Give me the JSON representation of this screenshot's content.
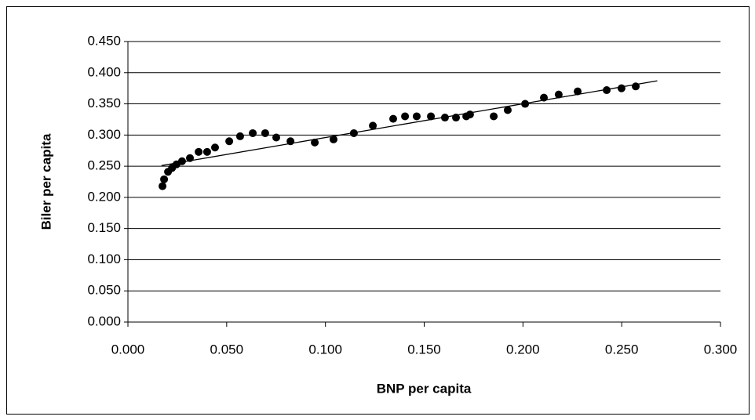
{
  "chart_data": {
    "type": "scatter",
    "xlabel": "BNP per capita",
    "ylabel": "Biler per capita",
    "xlim": [
      0,
      0.3
    ],
    "ylim": [
      0,
      0.45
    ],
    "xticks": [
      {
        "value": 0,
        "label": "0.000"
      },
      {
        "value": 0.05,
        "label": "0.050"
      },
      {
        "value": 0.1,
        "label": "0.100"
      },
      {
        "value": 0.15,
        "label": "0.150"
      },
      {
        "value": 0.2,
        "label": "0.200"
      },
      {
        "value": 0.25,
        "label": "0.250"
      },
      {
        "value": 0.3,
        "label": "0.300"
      }
    ],
    "yticks": [
      {
        "value": 0,
        "label": "0.000"
      },
      {
        "value": 0.05,
        "label": "0.050"
      },
      {
        "value": 0.1,
        "label": "0.100"
      },
      {
        "value": 0.15,
        "label": "0.150"
      },
      {
        "value": 0.2,
        "label": "0.200"
      },
      {
        "value": 0.25,
        "label": "0.250"
      },
      {
        "value": 0.3,
        "label": "0.300"
      },
      {
        "value": 0.35,
        "label": "0.350"
      },
      {
        "value": 0.4,
        "label": "0.400"
      },
      {
        "value": 0.45,
        "label": "0.450"
      }
    ],
    "grid": true,
    "color": "#000000",
    "x": [
      0.0175,
      0.0183,
      0.0203,
      0.0223,
      0.0246,
      0.0274,
      0.0314,
      0.0358,
      0.0401,
      0.0441,
      0.0513,
      0.0568,
      0.0632,
      0.0695,
      0.0751,
      0.0823,
      0.0946,
      0.1041,
      0.1144,
      0.124,
      0.1343,
      0.1403,
      0.1462,
      0.1534,
      0.1605,
      0.1661,
      0.1713,
      0.1732,
      0.1852,
      0.1923,
      0.2011,
      0.2106,
      0.2181,
      0.2277,
      0.2424,
      0.2499,
      0.2571
    ],
    "values": [
      0.218,
      0.229,
      0.241,
      0.247,
      0.253,
      0.258,
      0.263,
      0.273,
      0.273,
      0.28,
      0.29,
      0.298,
      0.303,
      0.303,
      0.296,
      0.29,
      0.288,
      0.293,
      0.303,
      0.315,
      0.326,
      0.33,
      0.33,
      0.33,
      0.328,
      0.328,
      0.33,
      0.333,
      0.33,
      0.34,
      0.35,
      0.36,
      0.365,
      0.37,
      0.372,
      0.375,
      0.378
    ],
    "trendline": {
      "x": [
        0.017,
        0.268
      ],
      "values": [
        0.251,
        0.387
      ]
    }
  }
}
